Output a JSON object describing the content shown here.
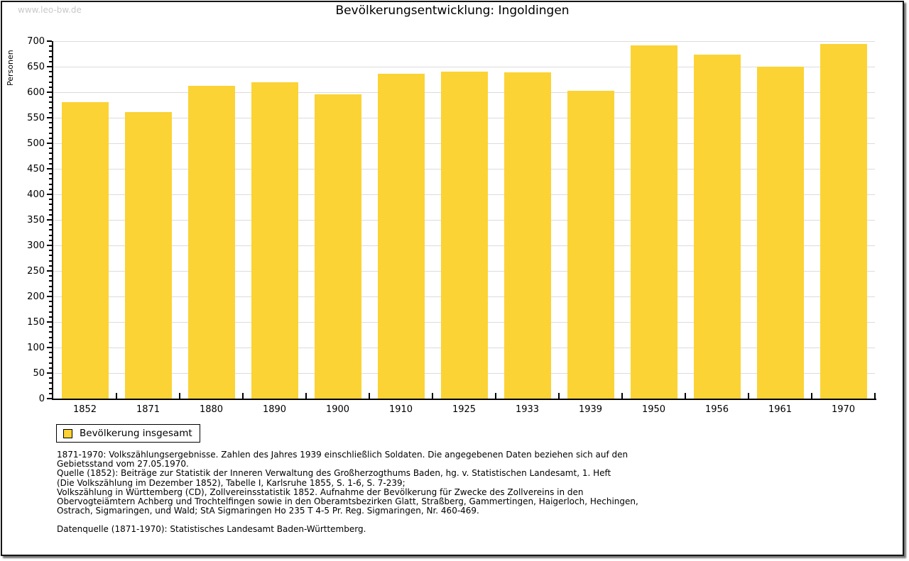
{
  "watermark": "www.leo-bw.de",
  "header": {
    "title": "Bevölkerungsentwicklung: Ingoldingen"
  },
  "chart_data": {
    "type": "bar",
    "title": "Bevölkerungsentwicklung: Ingoldingen",
    "xlabel": "",
    "ylabel": "Personen",
    "categories": [
      "1852",
      "1871",
      "1880",
      "1890",
      "1900",
      "1910",
      "1925",
      "1933",
      "1939",
      "1950",
      "1956",
      "1961",
      "1970"
    ],
    "series": [
      {
        "name": "Bevölkerung insgesamt",
        "values": [
          580,
          561,
          612,
          619,
          596,
          636,
          640,
          639,
          603,
          692,
          674,
          650,
          695
        ]
      }
    ],
    "ylim": [
      0,
      700
    ],
    "ytick_major": 50,
    "ytick_minor": 10,
    "grid": true,
    "legend_position": "bottom-left",
    "bar_color": "#FBD335",
    "grid_color": "#dcdcdc",
    "axis_color": "#000000"
  },
  "legend": {
    "label": "Bevölkerung insgesamt",
    "swatch_color": "#FBD335"
  },
  "footnotes": {
    "lines": [
      "1871-1970: Volkszählungsergebnisse. Zahlen des Jahres 1939 einschließlich Soldaten. Die angegebenen Daten beziehen sich auf den",
      "Gebietsstand vom 27.05.1970.",
      "Quelle (1852): Beiträge zur Statistik der Inneren Verwaltung des Großherzogthums Baden, hg. v. Statistischen Landesamt, 1. Heft",
      "(Die Volkszählung im Dezember 1852), Tabelle I, Karlsruhe 1855, S. 1-6, S. 7-239;",
      "Volkszählung in Württemberg (CD), Zollvereinsstatistik 1852. Aufnahme der Bevölkerung für Zwecke des Zollvereins in den",
      "Obervogteiämtern Achberg und Trochtelfingen sowie in den Oberamtsbezirken Glatt, Straßberg, Gammertingen, Haigerloch, Hechingen,",
      "Ostrach, Sigmaringen, und Wald; StA Sigmaringen Ho 235 T 4-5 Pr. Reg. Sigmaringen, Nr. 460-469."
    ],
    "datasource": "Datenquelle (1871-1970): Statistisches Landesamt Baden-Württemberg."
  }
}
